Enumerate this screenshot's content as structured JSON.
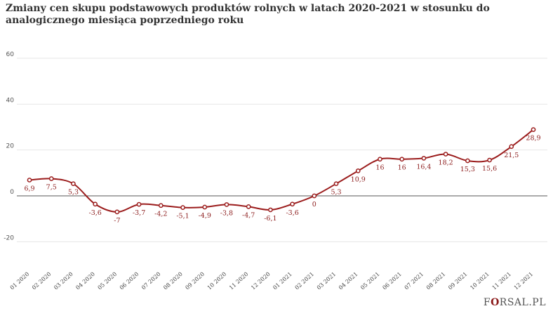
{
  "title": "Zmiany cen skupu podstawowych produktów rolnych w latach 2020-2021 w stosunku do analogicznego miesiąca poprzedniego roku",
  "logo": {
    "prefix": "F",
    "highlight": "O",
    "suffix": "RSAL.PL"
  },
  "colors": {
    "line": "#9b1c1c",
    "grid": "#e6e6e6",
    "zero_line": "#555555",
    "label": "#8b1a1a"
  },
  "chart_data": {
    "type": "line",
    "title": "Zmiany cen skupu podstawowych produktów rolnych w latach 2020-2021 w stosunku do analogicznego miesiąca poprzedniego roku",
    "xlabel": "",
    "ylabel": "",
    "ylim": [
      -30,
      70
    ],
    "yticks": [
      -20,
      0,
      20,
      40,
      60
    ],
    "grid": true,
    "categories": [
      "01 2020",
      "02 2020",
      "03 2020",
      "04 2020",
      "05 2020",
      "06 2020",
      "07 2020",
      "08 2020",
      "09 2020",
      "10 2020",
      "11 2020",
      "12 2020",
      "01 2021",
      "02 2021",
      "03 2021",
      "04 2021",
      "05 2021",
      "06 2021",
      "07 2021",
      "08 2021",
      "09 2021",
      "10 2021",
      "11 2021",
      "12 2021"
    ],
    "series": [
      {
        "values": [
          6.9,
          7.5,
          5.3,
          -3.6,
          -7,
          -3.7,
          -4.2,
          -5.1,
          -4.9,
          -3.8,
          -4.7,
          -6.1,
          -3.6,
          0,
          5.3,
          10.9,
          16,
          16,
          16.4,
          18.2,
          15.3,
          15.6,
          21.5,
          28.9
        ],
        "labels": [
          "6,9",
          "7,5",
          "5,3",
          "-3,6",
          "-7",
          "-3,7",
          "-4,2",
          "-5,1",
          "-4,9",
          "-3,8",
          "-4,7",
          "-6,1",
          "-3,6",
          "0",
          "5,3",
          "10,9",
          "16",
          "16",
          "16,4",
          "18,2",
          "15,3",
          "15,6",
          "21,5",
          "28,9"
        ]
      }
    ]
  }
}
